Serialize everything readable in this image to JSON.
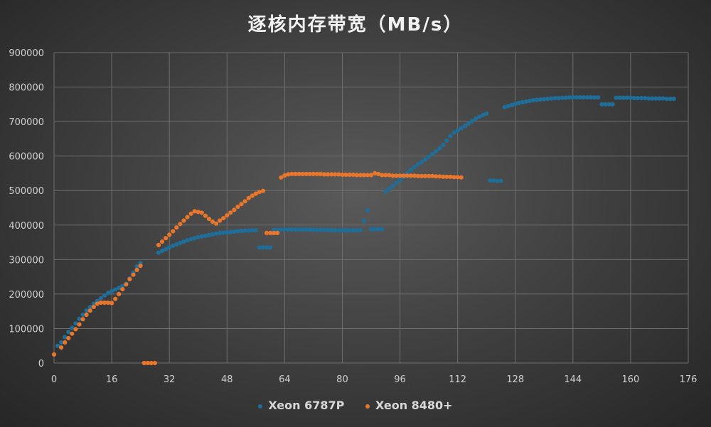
{
  "chart_data": {
    "type": "scatter",
    "title": "逐核内存带宽（MB/s）",
    "xlabel": "",
    "ylabel": "",
    "xlim": [
      0,
      176
    ],
    "ylim": [
      0,
      900000
    ],
    "x_ticks": [
      "0",
      "16",
      "32",
      "48",
      "64",
      "80",
      "96",
      "112",
      "128",
      "144",
      "160",
      "176"
    ],
    "y_ticks": [
      "0",
      "100000",
      "200000",
      "300000",
      "400000",
      "500000",
      "600000",
      "700000",
      "800000",
      "900000"
    ],
    "grid": true,
    "legend_position": "bottom",
    "series": [
      {
        "name": "Xeon 6787P",
        "color": "#1f6e99",
        "points": [
          [
            1,
            50000
          ],
          [
            2,
            60000
          ],
          [
            3,
            75000
          ],
          [
            4,
            90000
          ],
          [
            5,
            102000
          ],
          [
            6,
            115000
          ],
          [
            7,
            128000
          ],
          [
            8,
            140000
          ],
          [
            9,
            152000
          ],
          [
            10,
            162000
          ],
          [
            11,
            172000
          ],
          [
            12,
            180000
          ],
          [
            13,
            188000
          ],
          [
            14,
            196000
          ],
          [
            15,
            203000
          ],
          [
            16,
            208000
          ],
          [
            17,
            213000
          ],
          [
            18,
            218000
          ],
          [
            19,
            223000
          ],
          [
            20,
            230000
          ],
          [
            21,
            245000
          ],
          [
            22,
            262000
          ],
          [
            23,
            280000
          ],
          [
            24,
            290000
          ],
          [
            29,
            320000
          ],
          [
            30,
            325000
          ],
          [
            31,
            330000
          ],
          [
            32,
            335000
          ],
          [
            33,
            340000
          ],
          [
            34,
            344000
          ],
          [
            35,
            348000
          ],
          [
            36,
            352000
          ],
          [
            37,
            356000
          ],
          [
            38,
            359000
          ],
          [
            39,
            362000
          ],
          [
            40,
            365000
          ],
          [
            41,
            367000
          ],
          [
            42,
            369000
          ],
          [
            43,
            371000
          ],
          [
            44,
            373000
          ],
          [
            45,
            375000
          ],
          [
            46,
            377000
          ],
          [
            47,
            378000
          ],
          [
            48,
            379000
          ],
          [
            49,
            380000
          ],
          [
            50,
            381000
          ],
          [
            51,
            382000
          ],
          [
            52,
            383000
          ],
          [
            53,
            384000
          ],
          [
            54,
            384000
          ],
          [
            55,
            385000
          ],
          [
            56,
            385000
          ],
          [
            57,
            335000
          ],
          [
            58,
            335000
          ],
          [
            59,
            335000
          ],
          [
            60,
            335000
          ],
          [
            61,
            386000
          ],
          [
            62,
            386000
          ],
          [
            63,
            387000
          ],
          [
            64,
            387000
          ],
          [
            65,
            387000
          ],
          [
            66,
            387000
          ],
          [
            67,
            387000
          ],
          [
            68,
            387000
          ],
          [
            69,
            387000
          ],
          [
            70,
            387000
          ],
          [
            71,
            387000
          ],
          [
            72,
            386000
          ],
          [
            73,
            386000
          ],
          [
            74,
            386000
          ],
          [
            75,
            386000
          ],
          [
            76,
            386000
          ],
          [
            77,
            385000
          ],
          [
            78,
            385000
          ],
          [
            79,
            385000
          ],
          [
            80,
            385000
          ],
          [
            81,
            385000
          ],
          [
            82,
            385000
          ],
          [
            83,
            385000
          ],
          [
            84,
            385000
          ],
          [
            85,
            385000
          ],
          [
            86,
            412000
          ],
          [
            87,
            443000
          ],
          [
            88,
            388000
          ],
          [
            89,
            388000
          ],
          [
            90,
            388000
          ],
          [
            91,
            388000
          ],
          [
            92,
            497000
          ],
          [
            93,
            505000
          ],
          [
            94,
            513000
          ],
          [
            95,
            522000
          ],
          [
            96,
            531000
          ],
          [
            97,
            540000
          ],
          [
            98,
            550000
          ],
          [
            99,
            560000
          ],
          [
            100,
            568000
          ],
          [
            101,
            576000
          ],
          [
            102,
            583000
          ],
          [
            103,
            590000
          ],
          [
            104,
            598000
          ],
          [
            105,
            606000
          ],
          [
            106,
            614000
          ],
          [
            107,
            622000
          ],
          [
            108,
            632000
          ],
          [
            109,
            645000
          ],
          [
            110,
            658000
          ],
          [
            111,
            668000
          ],
          [
            112,
            675000
          ],
          [
            113,
            681000
          ],
          [
            114,
            687000
          ],
          [
            115,
            694000
          ],
          [
            116,
            701000
          ],
          [
            117,
            708000
          ],
          [
            118,
            714000
          ],
          [
            119,
            719000
          ],
          [
            120,
            723000
          ],
          [
            121,
            529000
          ],
          [
            122,
            529000
          ],
          [
            123,
            528000
          ],
          [
            124,
            528000
          ],
          [
            125,
            742000
          ],
          [
            126,
            745000
          ],
          [
            127,
            748000
          ],
          [
            128,
            751000
          ],
          [
            129,
            754000
          ],
          [
            130,
            756000
          ],
          [
            131,
            758000
          ],
          [
            132,
            760000
          ],
          [
            133,
            762000
          ],
          [
            134,
            763000
          ],
          [
            135,
            764000
          ],
          [
            136,
            765000
          ],
          [
            137,
            766000
          ],
          [
            138,
            767000
          ],
          [
            139,
            768000
          ],
          [
            140,
            768000
          ],
          [
            141,
            769000
          ],
          [
            142,
            769000
          ],
          [
            143,
            770000
          ],
          [
            144,
            770000
          ],
          [
            145,
            770000
          ],
          [
            146,
            770000
          ],
          [
            147,
            770000
          ],
          [
            148,
            770000
          ],
          [
            149,
            770000
          ],
          [
            150,
            770000
          ],
          [
            151,
            770000
          ],
          [
            152,
            750000
          ],
          [
            153,
            750000
          ],
          [
            154,
            750000
          ],
          [
            155,
            750000
          ],
          [
            156,
            769000
          ],
          [
            157,
            769000
          ],
          [
            158,
            769000
          ],
          [
            159,
            769000
          ],
          [
            160,
            769000
          ],
          [
            161,
            768000
          ],
          [
            162,
            768000
          ],
          [
            163,
            768000
          ],
          [
            164,
            768000
          ],
          [
            165,
            767000
          ],
          [
            166,
            767000
          ],
          [
            167,
            767000
          ],
          [
            168,
            767000
          ],
          [
            169,
            767000
          ],
          [
            170,
            766000
          ],
          [
            171,
            766000
          ],
          [
            172,
            766000
          ]
        ]
      },
      {
        "name": "Xeon 8480+",
        "color": "#e8762c",
        "points": [
          [
            0,
            25000
          ],
          [
            2,
            45000
          ],
          [
            3,
            60000
          ],
          [
            4,
            72000
          ],
          [
            5,
            85000
          ],
          [
            6,
            98000
          ],
          [
            7,
            112000
          ],
          [
            8,
            127000
          ],
          [
            9,
            140000
          ],
          [
            10,
            152000
          ],
          [
            11,
            163000
          ],
          [
            12,
            172000
          ],
          [
            13,
            175000
          ],
          [
            14,
            175000
          ],
          [
            15,
            175000
          ],
          [
            16,
            174000
          ],
          [
            17,
            186000
          ],
          [
            18,
            200000
          ],
          [
            19,
            214000
          ],
          [
            20,
            228000
          ],
          [
            21,
            243000
          ],
          [
            22,
            256000
          ],
          [
            23,
            270000
          ],
          [
            24,
            282000
          ],
          [
            25,
            0
          ],
          [
            26,
            0
          ],
          [
            27,
            0
          ],
          [
            28,
            0
          ],
          [
            29,
            342000
          ],
          [
            30,
            352000
          ],
          [
            31,
            362000
          ],
          [
            32,
            372000
          ],
          [
            33,
            382000
          ],
          [
            34,
            393000
          ],
          [
            35,
            403000
          ],
          [
            36,
            413000
          ],
          [
            37,
            423000
          ],
          [
            38,
            433000
          ],
          [
            39,
            440000
          ],
          [
            40,
            438000
          ],
          [
            41,
            436000
          ],
          [
            42,
            427000
          ],
          [
            43,
            418000
          ],
          [
            44,
            410000
          ],
          [
            45,
            404000
          ],
          [
            46,
            413000
          ],
          [
            47,
            420000
          ],
          [
            48,
            428000
          ],
          [
            49,
            436000
          ],
          [
            50,
            444000
          ],
          [
            51,
            453000
          ],
          [
            52,
            461000
          ],
          [
            53,
            469000
          ],
          [
            54,
            478000
          ],
          [
            55,
            485000
          ],
          [
            56,
            491000
          ],
          [
            57,
            496000
          ],
          [
            58,
            499000
          ],
          [
            59,
            377000
          ],
          [
            60,
            377000
          ],
          [
            61,
            377000
          ],
          [
            62,
            377000
          ],
          [
            63,
            538000
          ],
          [
            64,
            544000
          ],
          [
            65,
            547000
          ],
          [
            66,
            548000
          ],
          [
            67,
            548000
          ],
          [
            68,
            548000
          ],
          [
            69,
            548000
          ],
          [
            70,
            548000
          ],
          [
            71,
            548000
          ],
          [
            72,
            548000
          ],
          [
            73,
            548000
          ],
          [
            74,
            548000
          ],
          [
            75,
            547000
          ],
          [
            76,
            547000
          ],
          [
            77,
            547000
          ],
          [
            78,
            547000
          ],
          [
            79,
            547000
          ],
          [
            80,
            546000
          ],
          [
            81,
            546000
          ],
          [
            82,
            546000
          ],
          [
            83,
            546000
          ],
          [
            84,
            545000
          ],
          [
            85,
            545000
          ],
          [
            86,
            545000
          ],
          [
            87,
            545000
          ],
          [
            88,
            545000
          ],
          [
            89,
            550000
          ],
          [
            90,
            548000
          ],
          [
            91,
            545000
          ],
          [
            92,
            545000
          ],
          [
            93,
            545000
          ],
          [
            94,
            543000
          ],
          [
            95,
            543000
          ],
          [
            96,
            543000
          ],
          [
            97,
            543000
          ],
          [
            98,
            543000
          ],
          [
            99,
            543000
          ],
          [
            100,
            543000
          ],
          [
            101,
            542000
          ],
          [
            102,
            542000
          ],
          [
            103,
            542000
          ],
          [
            104,
            542000
          ],
          [
            105,
            542000
          ],
          [
            106,
            541000
          ],
          [
            107,
            541000
          ],
          [
            108,
            540000
          ],
          [
            109,
            540000
          ],
          [
            110,
            540000
          ],
          [
            111,
            539000
          ],
          [
            112,
            539000
          ],
          [
            113,
            538000
          ]
        ]
      }
    ]
  }
}
